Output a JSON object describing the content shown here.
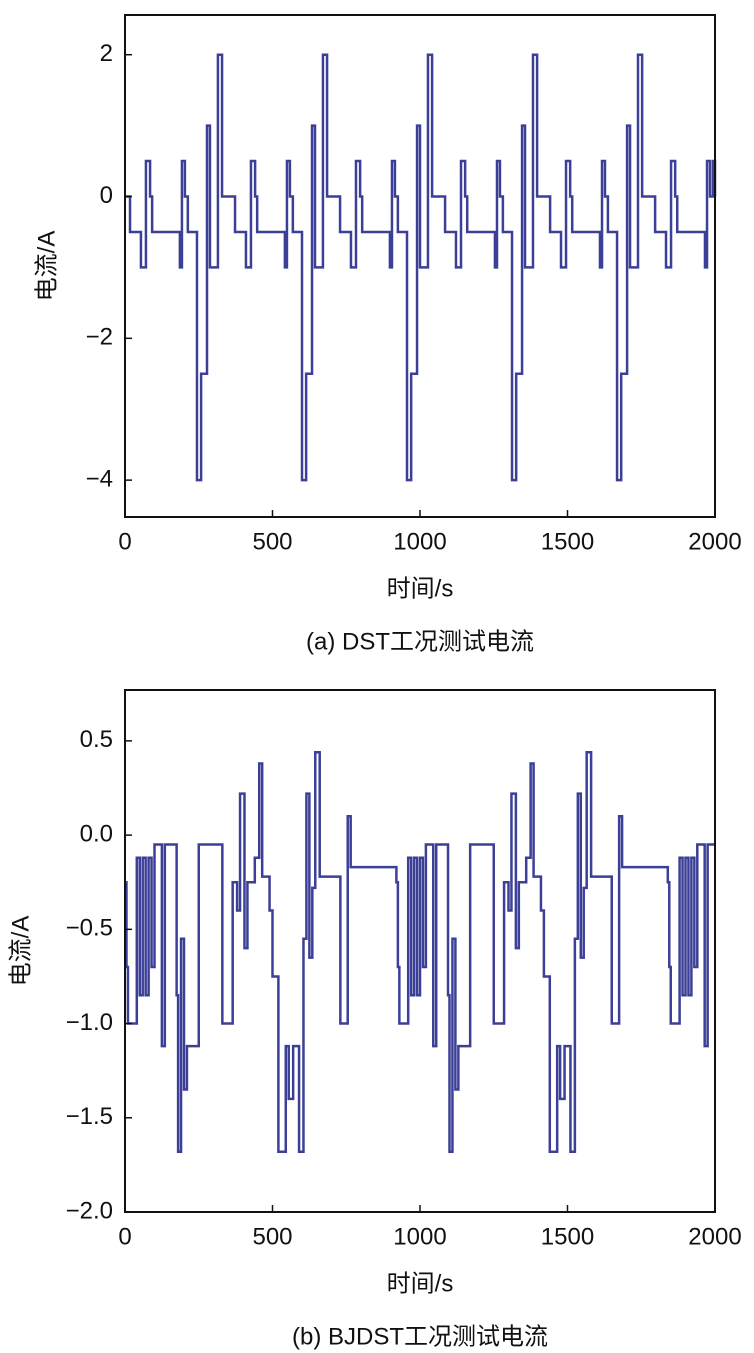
{
  "chart_data": [
    {
      "type": "step",
      "title": "(a) DST工况测试电流",
      "x_label": "时间/s",
      "y_label": "电流/A",
      "xlim": [
        0,
        2000
      ],
      "xticks": [
        0,
        500,
        1000,
        1500,
        2000
      ],
      "ylim": [
        -4.52,
        2.56
      ],
      "yticks": [
        2,
        0,
        {
          "value": -2,
          "label": "−2"
        },
        {
          "value": -4,
          "label": "−4"
        }
      ],
      "series": [
        {
          "name": "DST",
          "color": "#3b3f96",
          "x": [
            0,
            17,
            54,
            71,
            85,
            92,
            186,
            193,
            203,
            213,
            244,
            258,
            278,
            288,
            315,
            329,
            356,
            373,
            410,
            427,
            441,
            448,
            542,
            549,
            559,
            569,
            600,
            614,
            634,
            644,
            671,
            685,
            712,
            729,
            766,
            783,
            797,
            804,
            898,
            905,
            915,
            925,
            956,
            970,
            990,
            1000,
            1027,
            1041,
            1068,
            1085,
            1122,
            1139,
            1153,
            1160,
            1254,
            1261,
            1271,
            1281,
            1312,
            1326,
            1346,
            1356,
            1383,
            1397,
            1424,
            1441,
            1478,
            1495,
            1509,
            1516,
            1610,
            1617,
            1627,
            1637,
            1668,
            1682,
            1702,
            1712,
            1739,
            1753,
            1780,
            1797,
            1834,
            1851,
            1865,
            1872,
            1966,
            1973,
            1983,
            1993,
            2000
          ],
          "values": [
            0,
            -0.5,
            -1,
            0.5,
            0,
            -0.5,
            -1,
            0.5,
            0,
            -0.5,
            -4,
            -2.5,
            1,
            -1,
            2,
            0,
            0,
            -0.5,
            -1,
            0.5,
            0,
            -0.5,
            -1,
            0.5,
            0,
            -0.5,
            -4,
            -2.5,
            1,
            -1,
            2,
            0,
            0,
            -0.5,
            -1,
            0.5,
            0,
            -0.5,
            -1,
            0.5,
            0,
            -0.5,
            -4,
            -2.5,
            1,
            -1,
            2,
            0,
            0,
            -0.5,
            -1,
            0.5,
            0,
            -0.5,
            -1,
            0.5,
            0,
            -0.5,
            -4,
            -2.5,
            1,
            -1,
            2,
            0,
            0,
            -0.5,
            -1,
            0.5,
            0,
            -0.5,
            -1,
            0.5,
            0,
            -0.5,
            -4,
            -2.5,
            1,
            -1,
            2,
            0,
            0,
            -0.5,
            -1,
            0.5,
            0,
            -0.5,
            -1,
            0.5,
            0,
            0.5,
            0
          ]
        }
      ]
    },
    {
      "type": "step",
      "title": "(b) BJDST工况测试电流",
      "x_label": "时间/s",
      "y_label": "电流/A",
      "xlim": [
        0,
        2000
      ],
      "xticks": [
        0,
        500,
        1000,
        1500,
        2000
      ],
      "ylim": [
        -2.0,
        0.77
      ],
      "yticks": [
        0.5,
        {
          "value": 0,
          "label": "0.0"
        },
        {
          "value": -0.5,
          "label": "−0.5"
        },
        {
          "value": -1,
          "label": "−1.0"
        },
        {
          "value": -1.5,
          "label": "−1.5"
        },
        {
          "value": -2,
          "label": "−2.0"
        }
      ],
      "series": [
        {
          "name": "BJDST",
          "color": "#3b3f96",
          "x": [
            0,
            5,
            10,
            40,
            50,
            60,
            70,
            80,
            90,
            100,
            125,
            135,
            175,
            180,
            190,
            200,
            210,
            250,
            330,
            365,
            380,
            390,
            405,
            415,
            440,
            455,
            465,
            490,
            500,
            520,
            545,
            555,
            570,
            590,
            605,
            615,
            625,
            635,
            645,
            660,
            730,
            755,
            765,
            920,
            925,
            930,
            960,
            970,
            980,
            990,
            1000,
            1010,
            1020,
            1045,
            1055,
            1095,
            1100,
            1110,
            1120,
            1130,
            1170,
            1250,
            1285,
            1300,
            1310,
            1325,
            1335,
            1360,
            1375,
            1385,
            1410,
            1420,
            1440,
            1465,
            1475,
            1490,
            1510,
            1525,
            1535,
            1545,
            1555,
            1565,
            1580,
            1650,
            1675,
            1685,
            1840,
            1845,
            1850,
            1880,
            1890,
            1900,
            1910,
            1920,
            1930,
            1940,
            1965,
            1975,
            2000
          ],
          "values": [
            -0.25,
            -0.7,
            -1.0,
            -0.12,
            -0.85,
            -0.12,
            -0.85,
            -0.12,
            -0.7,
            -0.05,
            -1.12,
            -0.05,
            -0.85,
            -1.68,
            -0.55,
            -1.35,
            -1.12,
            -0.05,
            -1.0,
            -0.25,
            -0.4,
            0.22,
            -0.6,
            -0.25,
            -0.12,
            0.38,
            -0.22,
            -0.4,
            -0.75,
            -1.68,
            -1.12,
            -1.4,
            -1.12,
            -1.68,
            -0.55,
            0.22,
            -0.65,
            -0.28,
            0.44,
            -0.22,
            -1.0,
            0.1,
            -0.17,
            -0.25,
            -0.7,
            -1.0,
            -0.12,
            -0.85,
            -0.12,
            -0.85,
            -0.12,
            -0.7,
            -0.05,
            -1.12,
            -0.05,
            -0.85,
            -1.68,
            -0.55,
            -1.35,
            -1.12,
            -0.05,
            -1.0,
            -0.25,
            -0.4,
            0.22,
            -0.6,
            -0.25,
            -0.12,
            0.38,
            -0.22,
            -0.4,
            -0.75,
            -1.68,
            -1.12,
            -1.4,
            -1.12,
            -1.68,
            -0.55,
            0.22,
            -0.65,
            -0.28,
            0.44,
            -0.22,
            -1.0,
            0.1,
            -0.17,
            -0.25,
            -0.7,
            -1.0,
            -0.12,
            -0.85,
            -0.12,
            -0.85,
            -0.12,
            -0.7,
            -0.05,
            -1.12,
            -0.05,
            -0.05
          ]
        }
      ]
    }
  ]
}
